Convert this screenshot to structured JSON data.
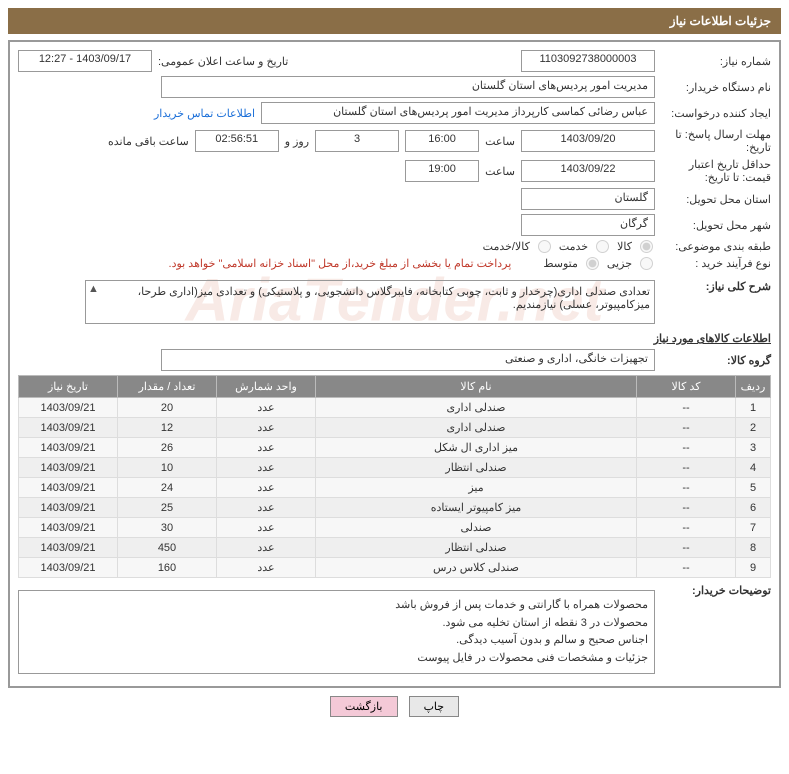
{
  "header": {
    "title": "جزئیات اطلاعات نیاز"
  },
  "watermark": "AriaTender.net",
  "fields": {
    "need_number_label": "شماره نیاز:",
    "need_number": "1103092738000003",
    "announce_label": "تاریخ و ساعت اعلان عمومی:",
    "announce_value": "1403/09/17 - 12:27",
    "buyer_label": "نام دستگاه خریدار:",
    "buyer_value": "مدیریت امور پردیس‌های استان گلستان",
    "requester_label": "ایجاد کننده درخواست:",
    "requester_value": "عباس رضائی کماسی کارپرداز مدیریت امور پردیس‌های استان گلستان",
    "contact_link": "اطلاعات تماس خریدار",
    "reply_deadline_label": "مهلت ارسال پاسخ: تا تاریخ:",
    "reply_date": "1403/09/20",
    "time_label": "ساعت",
    "reply_time": "16:00",
    "days_value": "3",
    "days_label": "روز و",
    "remain_time": "02:56:51",
    "remain_label": "ساعت باقی مانده",
    "min_validity_label": "حداقل تاریخ اعتبار قیمت: تا تاریخ:",
    "min_validity_date": "1403/09/22",
    "min_validity_time": "19:00",
    "delivery_province_label": "استان محل تحویل:",
    "delivery_province": "گلستان",
    "delivery_city_label": "شهر محل تحویل:",
    "delivery_city": "گرگان",
    "category_label": "طبقه بندی موضوعی:",
    "cat_goods": "کالا",
    "cat_service": "خدمت",
    "cat_both": "کالا/خدمت",
    "process_label": "نوع فرآیند خرید :",
    "proc_small": "جزیی",
    "proc_medium": "متوسط",
    "pay_note": "پرداخت تمام یا بخشی از مبلغ خرید،از محل \"اسناد خزانه اسلامی\" خواهد بود.",
    "desc_label": "شرح کلی نیاز:",
    "desc_text": "تعدادی صندلی اداری(چرخدار و ثابت، چوبی کتابخانه، فایبرگلاس دانشجویی، و پلاستیکی) و تعدادی میز(اداری طرحا، میزکامپیوتر، عسلی) نیازمندیم.",
    "items_title": "اطلاعات کالاهای مورد نیاز",
    "group_label": "گروه کالا:",
    "group_value": "تجهیزات خانگی، اداری و صنعتی",
    "buyer_notes_label": "توضیحات خریدار:",
    "notes_l1": "محصولات همراه با گارانتی و خدمات پس از فروش باشد",
    "notes_l2": "محصولات در 3 نقطه از استان تخلیه می شود.",
    "notes_l3": "اجناس صحیح و سالم و بدون آسیب دیدگی.",
    "notes_l4": "جزئیات و مشخصات فنی محصولات در فایل پیوست"
  },
  "table": {
    "headers": {
      "row": "ردیف",
      "code": "کد کالا",
      "name": "نام کالا",
      "unit": "واحد شمارش",
      "qty": "تعداد / مقدار",
      "date": "تاریخ نیاز"
    },
    "rows": [
      {
        "r": "1",
        "code": "--",
        "name": "صندلی اداری",
        "unit": "عدد",
        "qty": "20",
        "date": "1403/09/21"
      },
      {
        "r": "2",
        "code": "--",
        "name": "صندلی اداری",
        "unit": "عدد",
        "qty": "12",
        "date": "1403/09/21"
      },
      {
        "r": "3",
        "code": "--",
        "name": "میز اداری ال شکل",
        "unit": "عدد",
        "qty": "26",
        "date": "1403/09/21"
      },
      {
        "r": "4",
        "code": "--",
        "name": "صندلی انتظار",
        "unit": "عدد",
        "qty": "10",
        "date": "1403/09/21"
      },
      {
        "r": "5",
        "code": "--",
        "name": "میز",
        "unit": "عدد",
        "qty": "24",
        "date": "1403/09/21"
      },
      {
        "r": "6",
        "code": "--",
        "name": "میز کامپیوتر ایستاده",
        "unit": "عدد",
        "qty": "25",
        "date": "1403/09/21"
      },
      {
        "r": "7",
        "code": "--",
        "name": "صندلی",
        "unit": "عدد",
        "qty": "30",
        "date": "1403/09/21"
      },
      {
        "r": "8",
        "code": "--",
        "name": "صندلی انتظار",
        "unit": "عدد",
        "qty": "450",
        "date": "1403/09/21"
      },
      {
        "r": "9",
        "code": "--",
        "name": "صندلی کلاس درس",
        "unit": "عدد",
        "qty": "160",
        "date": "1403/09/21"
      }
    ]
  },
  "buttons": {
    "print": "چاپ",
    "back": "بازگشت"
  }
}
